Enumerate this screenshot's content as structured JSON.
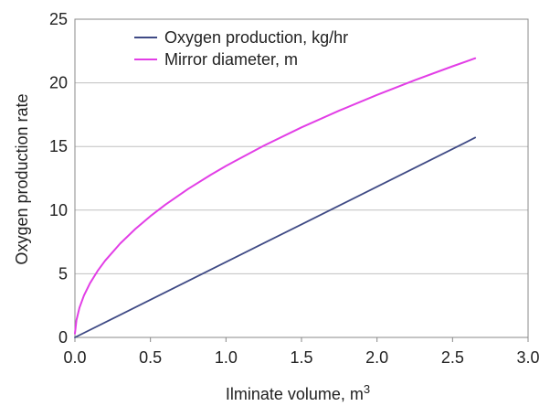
{
  "chart_data": {
    "type": "line",
    "xlabel": "Ilminate volume, m",
    "xlabel_superscript": "3",
    "ylabel": "Oxygen production rate",
    "xlim": [
      0,
      3.0
    ],
    "ylim": [
      0,
      25
    ],
    "x_ticks": [
      "0.0",
      "0.5",
      "1.0",
      "1.5",
      "2.0",
      "2.5",
      "3.0"
    ],
    "y_ticks": [
      "0",
      "5",
      "10",
      "15",
      "20",
      "25"
    ],
    "grid": "horizontal",
    "legend_position": "top-left",
    "series": [
      {
        "name": "Oxygen production, kg/hr",
        "color": "#3f4a85",
        "x": [
          0,
          0.25,
          0.5,
          0.75,
          1.0,
          1.25,
          1.5,
          1.75,
          2.0,
          2.25,
          2.5,
          2.65
        ],
        "y": [
          0,
          1.48,
          2.96,
          4.44,
          5.92,
          7.4,
          8.88,
          10.36,
          11.84,
          13.32,
          14.8,
          15.7
        ]
      },
      {
        "name": "Mirror diameter, m",
        "color": "#e23ee6",
        "x": [
          0,
          0.01,
          0.03,
          0.06,
          0.1,
          0.15,
          0.2,
          0.3,
          0.4,
          0.5,
          0.6,
          0.75,
          0.9,
          1.0,
          1.25,
          1.5,
          1.75,
          2.0,
          2.25,
          2.5,
          2.65
        ],
        "y": [
          0.3,
          1.35,
          2.33,
          3.3,
          4.26,
          5.22,
          6.03,
          7.38,
          8.52,
          9.53,
          10.44,
          11.67,
          12.78,
          13.47,
          15.06,
          16.5,
          17.82,
          19.05,
          20.21,
          21.3,
          21.93
        ]
      }
    ]
  }
}
